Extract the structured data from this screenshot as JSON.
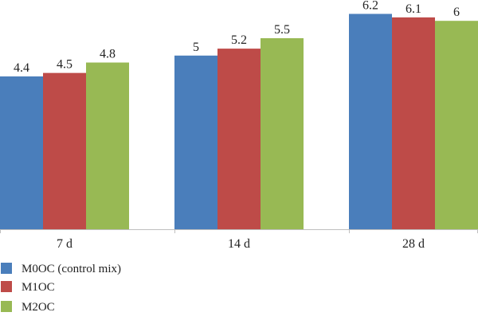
{
  "chart_data": {
    "type": "bar",
    "title": "",
    "xlabel": "",
    "ylabel": "",
    "categories": [
      "7 d",
      "14 d",
      "28 d"
    ],
    "series": [
      {
        "name": "M0OC (control mix)",
        "color": "#4a7ebb",
        "values": [
          4.4,
          5,
          6.2
        ]
      },
      {
        "name": "M1OC",
        "color": "#be4b48",
        "values": [
          4.5,
          5.2,
          6.1
        ]
      },
      {
        "name": "M2OC",
        "color": "#98b954",
        "values": [
          4.8,
          5.5,
          6
        ]
      }
    ],
    "data_labels": [
      [
        "4.4",
        "5",
        "6.2"
      ],
      [
        "4.5",
        "5.2",
        "6.1"
      ],
      [
        "4.8",
        "5.5",
        "6"
      ]
    ],
    "ylim": [
      0,
      6.6
    ],
    "grid": false,
    "axis_line_color": "#bfbfbf",
    "legend_position": "bottom-left"
  }
}
